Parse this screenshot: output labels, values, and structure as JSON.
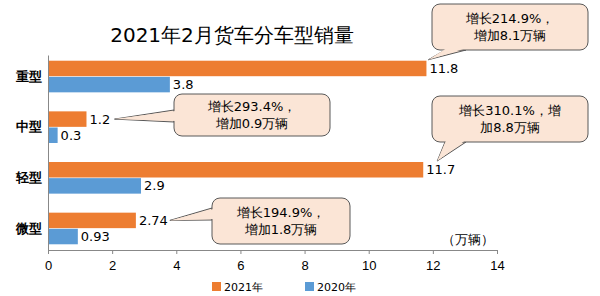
{
  "chart_data": {
    "type": "bar",
    "title": "2021年2月货车分车型销量",
    "orientation": "horizontal",
    "categories": [
      "重型",
      "中型",
      "轻型",
      "微型"
    ],
    "series": [
      {
        "name": "2021年",
        "color": "#ed7d31",
        "values": [
          11.8,
          1.2,
          11.7,
          2.74
        ]
      },
      {
        "name": "2020年",
        "color": "#5b9bd5",
        "values": [
          3.8,
          0.3,
          2.9,
          0.93
        ]
      }
    ],
    "x_label": "（万辆）",
    "xlim": [
      0,
      14
    ],
    "xticks": [
      0,
      2,
      4,
      6,
      8,
      10,
      12,
      14
    ],
    "data_labels": true,
    "grid": false,
    "legend": "bottom",
    "annotations": [
      {
        "category": "重型",
        "text": [
          "增长214.9%，",
          "增加8.1万辆"
        ]
      },
      {
        "category": "中型",
        "text": [
          "增长293.4%，",
          "增加0.9万辆"
        ]
      },
      {
        "category": "轻型",
        "text": [
          "增长310.1%，增",
          "加8.8万辆"
        ]
      },
      {
        "category": "微型",
        "text": [
          "增长194.9%，",
          "增加1.8万辆"
        ]
      }
    ]
  }
}
